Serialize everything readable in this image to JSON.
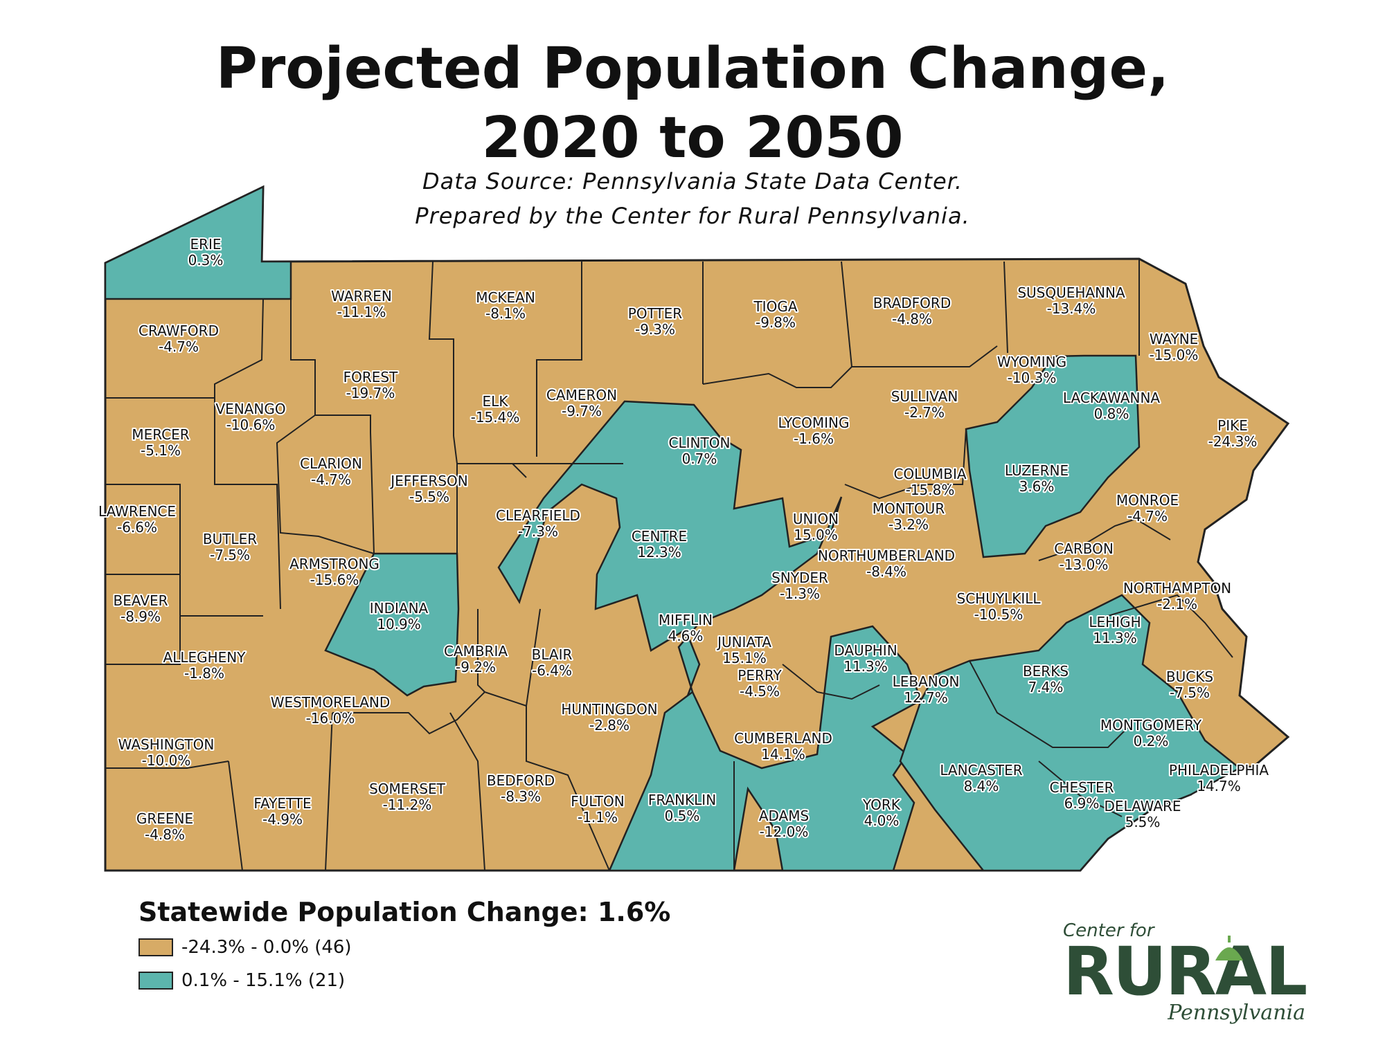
{
  "title_line1": "Projected Population Change,",
  "title_line2": "2020 to 2050",
  "source_line1": "Data Source: Pennsylvania State Data Center.",
  "source_line2": "Prepared by the Center for Rural Pennsylvania.",
  "statewide": "Statewide Population Change: 1.6%",
  "legend": [
    {
      "label": "-24.3% - 0.0% (46)",
      "color": "#d7ab66"
    },
    {
      "label": "0.1% - 15.1% (21)",
      "color": "#5cb5ad"
    }
  ],
  "logo": {
    "top": "Center for",
    "main": "RURAL",
    "bottom": "Pennsylvania"
  },
  "colors": {
    "decline": "#d7ab66",
    "growth": "#5cb5ad",
    "border": "#222222"
  },
  "counties": [
    {
      "name": "ERIE",
      "value": "0.3%",
      "class": "growth"
    },
    {
      "name": "CRAWFORD",
      "value": "-4.7%",
      "class": "decline"
    },
    {
      "name": "WARREN",
      "value": "-11.1%",
      "class": "decline"
    },
    {
      "name": "MCKEAN",
      "value": "-8.1%",
      "class": "decline"
    },
    {
      "name": "POTTER",
      "value": "-9.3%",
      "class": "decline"
    },
    {
      "name": "TIOGA",
      "value": "-9.8%",
      "class": "decline"
    },
    {
      "name": "BRADFORD",
      "value": "-4.8%",
      "class": "decline"
    },
    {
      "name": "SUSQUEHANNA",
      "value": "-13.4%",
      "class": "decline"
    },
    {
      "name": "WAYNE",
      "value": "-15.0%",
      "class": "decline"
    },
    {
      "name": "WYOMING",
      "value": "-10.3%",
      "class": "decline"
    },
    {
      "name": "LACKAWANNA",
      "value": "0.8%",
      "class": "growth"
    },
    {
      "name": "PIKE",
      "value": "-24.3%",
      "class": "decline"
    },
    {
      "name": "SULLIVAN",
      "value": "-2.7%",
      "class": "decline"
    },
    {
      "name": "LYCOMING",
      "value": "-1.6%",
      "class": "decline"
    },
    {
      "name": "CLINTON",
      "value": "0.7%",
      "class": "growth"
    },
    {
      "name": "CAMERON",
      "value": "-9.7%",
      "class": "decline"
    },
    {
      "name": "ELK",
      "value": "-15.4%",
      "class": "decline"
    },
    {
      "name": "FOREST",
      "value": "-19.7%",
      "class": "decline"
    },
    {
      "name": "VENANGO",
      "value": "-10.6%",
      "class": "decline"
    },
    {
      "name": "MERCER",
      "value": "-5.1%",
      "class": "decline"
    },
    {
      "name": "CLARION",
      "value": "-4.7%",
      "class": "decline"
    },
    {
      "name": "JEFFERSON",
      "value": "-5.5%",
      "class": "decline"
    },
    {
      "name": "CLEARFIELD",
      "value": "-7.3%",
      "class": "decline"
    },
    {
      "name": "CENTRE",
      "value": "12.3%",
      "class": "growth"
    },
    {
      "name": "UNION",
      "value": "15.0%",
      "class": "growth"
    },
    {
      "name": "COLUMBIA",
      "value": "-15.8%",
      "class": "decline"
    },
    {
      "name": "MONTOUR",
      "value": "-3.2%",
      "class": "decline"
    },
    {
      "name": "LUZERNE",
      "value": "3.6%",
      "class": "growth"
    },
    {
      "name": "MONROE",
      "value": "-4.7%",
      "class": "decline"
    },
    {
      "name": "CARBON",
      "value": "-13.0%",
      "class": "decline"
    },
    {
      "name": "NORTHUMBERLAND",
      "value": "-8.4%",
      "class": "decline"
    },
    {
      "name": "SNYDER",
      "value": "-1.3%",
      "class": "decline"
    },
    {
      "name": "LAWRENCE",
      "value": "-6.6%",
      "class": "decline"
    },
    {
      "name": "BUTLER",
      "value": "-7.5%",
      "class": "decline"
    },
    {
      "name": "ARMSTRONG",
      "value": "-15.6%",
      "class": "decline"
    },
    {
      "name": "BEAVER",
      "value": "-8.9%",
      "class": "decline"
    },
    {
      "name": "INDIANA",
      "value": "10.9%",
      "class": "growth"
    },
    {
      "name": "SCHUYLKILL",
      "value": "-10.5%",
      "class": "decline"
    },
    {
      "name": "NORTHAMPTON",
      "value": "-2.1%",
      "class": "decline"
    },
    {
      "name": "LEHIGH",
      "value": "11.3%",
      "class": "growth"
    },
    {
      "name": "MIFFLIN",
      "value": "4.6%",
      "class": "growth"
    },
    {
      "name": "JUNIATA",
      "value": "15.1%",
      "class": "growth"
    },
    {
      "name": "ALLEGHENY",
      "value": "-1.8%",
      "class": "decline"
    },
    {
      "name": "CAMBRIA",
      "value": "-9.2%",
      "class": "decline"
    },
    {
      "name": "BLAIR",
      "value": "-6.4%",
      "class": "decline"
    },
    {
      "name": "DAUPHIN",
      "value": "11.3%",
      "class": "growth"
    },
    {
      "name": "PERRY",
      "value": "-4.5%",
      "class": "decline"
    },
    {
      "name": "LEBANON",
      "value": "12.7%",
      "class": "growth"
    },
    {
      "name": "BERKS",
      "value": "7.4%",
      "class": "growth"
    },
    {
      "name": "BUCKS",
      "value": "-7.5%",
      "class": "decline"
    },
    {
      "name": "WESTMORELAND",
      "value": "-16.0%",
      "class": "decline"
    },
    {
      "name": "HUNTINGDON",
      "value": "-2.8%",
      "class": "decline"
    },
    {
      "name": "MONTGOMERY",
      "value": "0.2%",
      "class": "growth"
    },
    {
      "name": "WASHINGTON",
      "value": "-10.0%",
      "class": "decline"
    },
    {
      "name": "CUMBERLAND",
      "value": "14.1%",
      "class": "growth"
    },
    {
      "name": "LANCASTER",
      "value": "8.4%",
      "class": "growth"
    },
    {
      "name": "PHILADELPHIA",
      "value": "14.7%",
      "class": "growth"
    },
    {
      "name": "CHESTER",
      "value": "6.9%",
      "class": "growth"
    },
    {
      "name": "DELAWARE",
      "value": "5.5%",
      "class": "growth"
    },
    {
      "name": "SOMERSET",
      "value": "-11.2%",
      "class": "decline"
    },
    {
      "name": "BEDFORD",
      "value": "-8.3%",
      "class": "decline"
    },
    {
      "name": "FULTON",
      "value": "-1.1%",
      "class": "decline"
    },
    {
      "name": "FRANKLIN",
      "value": "0.5%",
      "class": "growth"
    },
    {
      "name": "ADAMS",
      "value": "-12.0%",
      "class": "decline"
    },
    {
      "name": "YORK",
      "value": "4.0%",
      "class": "growth"
    },
    {
      "name": "GREENE",
      "value": "-4.8%",
      "class": "decline"
    },
    {
      "name": "FAYETTE",
      "value": "-4.9%",
      "class": "decline"
    }
  ]
}
